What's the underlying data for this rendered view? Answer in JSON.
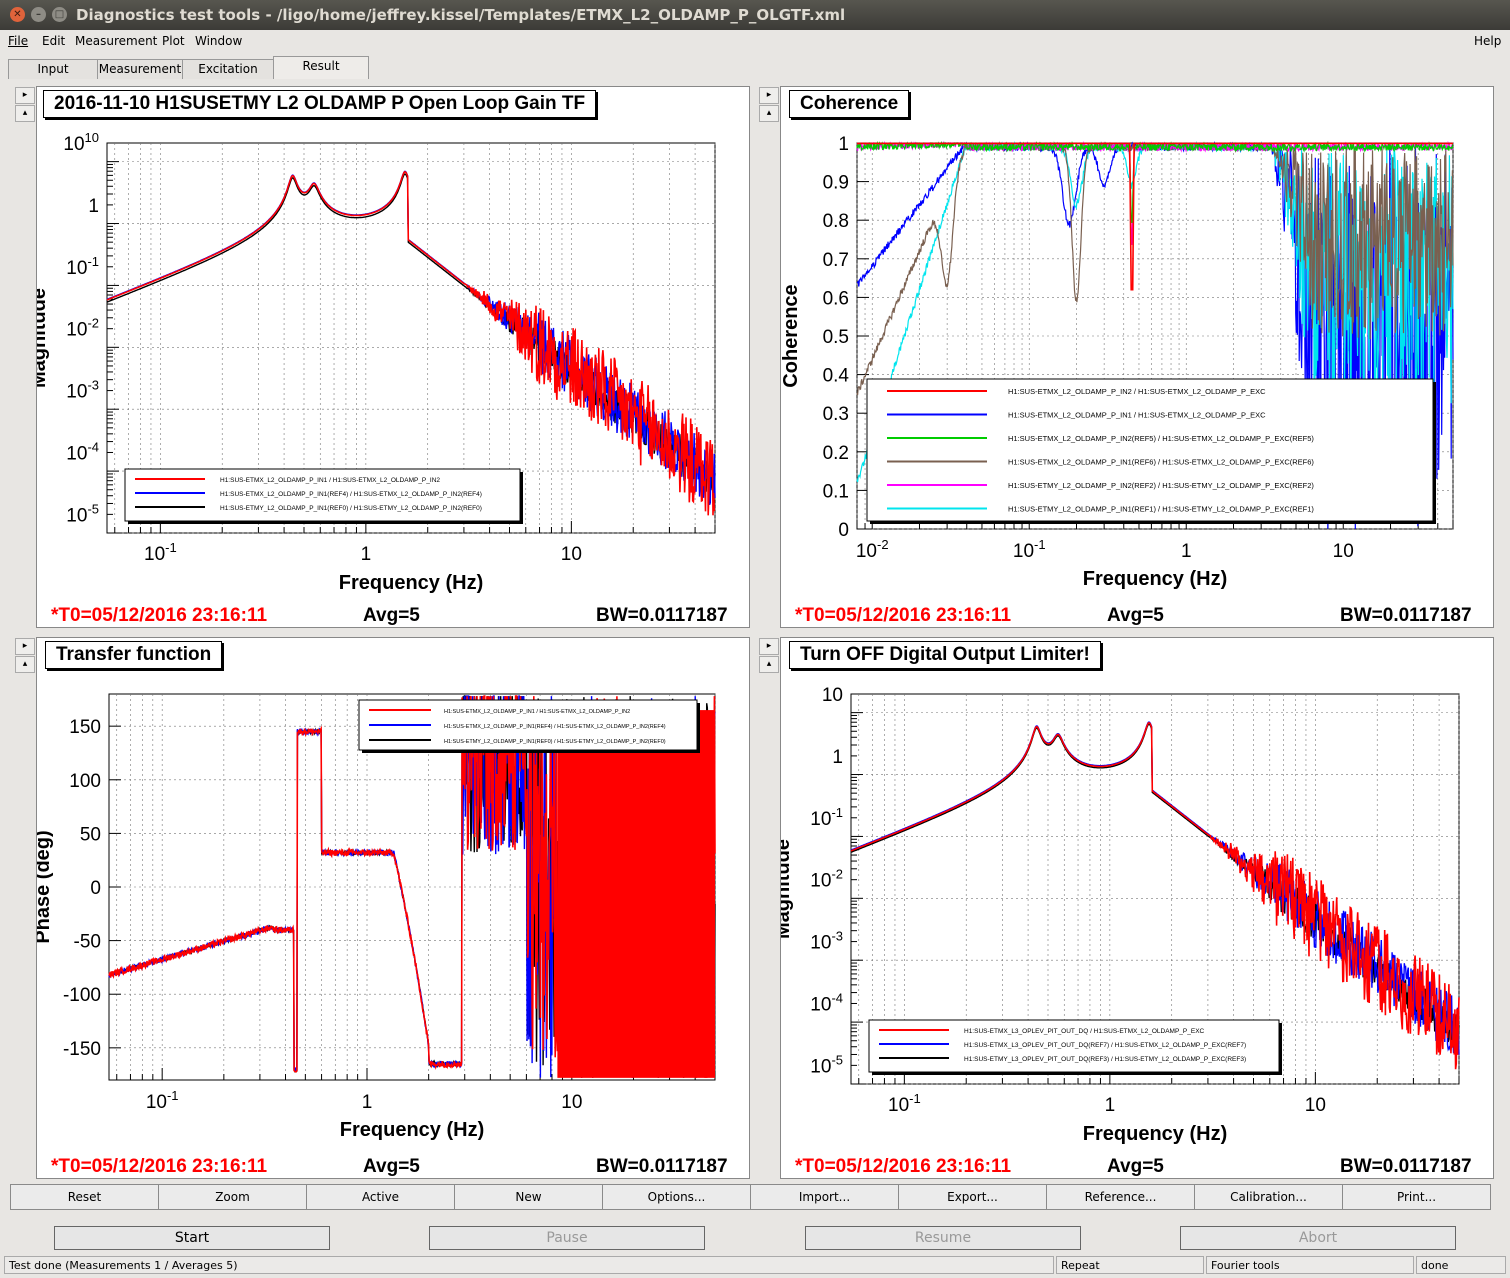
{
  "window": {
    "title": "Diagnostics test tools - /ligo/home/jeffrey.kissel/Templates/ETMX_L2_OLDAMP_P_OLGTF.xml"
  },
  "menu": {
    "file": "File",
    "edit": "Edit",
    "measurement": "Measurement",
    "plot": "Plot",
    "window": "Window",
    "help": "Help"
  },
  "tabs": [
    "Input",
    "Measurement",
    "Excitation",
    "Result"
  ],
  "panels": {
    "tl": {
      "title": "2016-11-10 H1SUSETMY L2 OLDAMP P Open Loop Gain TF",
      "ylabel": "Magnitude",
      "xlabel": "Frequency (Hz)",
      "yticks": [
        [
          "10",
          "10"
        ],
        [
          "1",
          ""
        ],
        [
          "10",
          "-1"
        ],
        [
          "10",
          "-2"
        ],
        [
          "10",
          "-3"
        ],
        [
          "10",
          "-4"
        ],
        [
          "10",
          "-5"
        ]
      ],
      "xticks": [
        [
          "10",
          "-1"
        ],
        [
          "1",
          ""
        ],
        [
          "10",
          ""
        ]
      ],
      "legend": [
        "H1:SUS-ETMX_L2_OLDAMP_P_IN1 / H1:SUS-ETMX_L2_OLDAMP_P_IN2",
        "H1:SUS-ETMX_L2_OLDAMP_P_IN1(REF4) / H1:SUS-ETMX_L2_OLDAMP_P_IN2(REF4)",
        "H1:SUS-ETMY_L2_OLDAMP_P_IN1(REF0) / H1:SUS-ETMY_L2_OLDAMP_P_IN2(REF0)"
      ],
      "t0": "*T0=05/12/2016 23:16:11",
      "avg": "Avg=5",
      "bw": "BW=0.0117187"
    },
    "tr": {
      "title": "Coherence",
      "ylabel": "Coherence",
      "xlabel": "Frequency (Hz)",
      "yticks": [
        "1",
        "0.9",
        "0.8",
        "0.7",
        "0.6",
        "0.5",
        "0.4",
        "0.3",
        "0.2",
        "0.1",
        "0"
      ],
      "xticks": [
        [
          "10",
          "-2"
        ],
        [
          "10",
          "-1"
        ],
        [
          "1",
          ""
        ],
        [
          "10",
          ""
        ]
      ],
      "legend": [
        "H1:SUS-ETMX_L2_OLDAMP_P_IN2 / H1:SUS-ETMX_L2_OLDAMP_P_EXC",
        "H1:SUS-ETMX_L2_OLDAMP_P_IN1 / H1:SUS-ETMX_L2_OLDAMP_P_EXC",
        "H1:SUS-ETMX_L2_OLDAMP_P_IN2(REF5) / H1:SUS-ETMX_L2_OLDAMP_P_EXC(REF5)",
        "H1:SUS-ETMX_L2_OLDAMP_P_IN1(REF6) / H1:SUS-ETMX_L2_OLDAMP_P_EXC(REF6)",
        "H1:SUS-ETMY_L2_OLDAMP_P_IN2(REF2) / H1:SUS-ETMY_L2_OLDAMP_P_EXC(REF2)",
        "H1:SUS-ETMY_L2_OLDAMP_P_IN1(REF1) / H1:SUS-ETMY_L2_OLDAMP_P_EXC(REF1)"
      ],
      "t0": "*T0=05/12/2016 23:16:11",
      "avg": "Avg=5",
      "bw": "BW=0.0117187"
    },
    "bl": {
      "title": "Transfer function",
      "ylabel": "Phase (deg)",
      "xlabel": "Frequency (Hz)",
      "yticks": [
        "150",
        "100",
        "50",
        "0",
        "-50",
        "-100",
        "-150"
      ],
      "xticks": [
        [
          "10",
          "-1"
        ],
        [
          "1",
          ""
        ],
        [
          "10",
          ""
        ]
      ],
      "legend": [
        "H1:SUS-ETMX_L2_OLDAMP_P_IN1 / H1:SUS-ETMX_L2_OLDAMP_P_IN2",
        "H1:SUS-ETMX_L2_OLDAMP_P_IN1(REF4) / H1:SUS-ETMX_L2_OLDAMP_P_IN2(REF4)",
        "H1:SUS-ETMY_L2_OLDAMP_P_IN1(REF0) / H1:SUS-ETMY_L2_OLDAMP_P_IN2(REF0)"
      ],
      "t0": "*T0=05/12/2016 23:16:11",
      "avg": "Avg=5",
      "bw": "BW=0.0117187"
    },
    "br": {
      "title": "Turn OFF Digital Output Limiter!",
      "ylabel": "Magnitude",
      "xlabel": "Frequency (Hz)",
      "yticks": [
        [
          "10",
          ""
        ],
        [
          "1",
          ""
        ],
        [
          "10",
          "-1"
        ],
        [
          "10",
          "-2"
        ],
        [
          "10",
          "-3"
        ],
        [
          "10",
          "-4"
        ],
        [
          "10",
          "-5"
        ]
      ],
      "xticks": [
        [
          "10",
          "-1"
        ],
        [
          "1",
          ""
        ],
        [
          "10",
          ""
        ]
      ],
      "legend": [
        "H1:SUS-ETMX_L3_OPLEV_PIT_OUT_DQ / H1:SUS-ETMX_L2_OLDAMP_P_EXC",
        "H1:SUS-ETMX_L3_OPLEV_PIT_OUT_DQ(REF7) / H1:SUS-ETMX_L2_OLDAMP_P_EXC(REF7)",
        "H1:SUS-ETMY_L3_OPLEV_PIT_OUT_DQ(REF3) / H1:SUS-ETMY_L2_OLDAMP_P_EXC(REF3)"
      ],
      "t0": "*T0=05/12/2016 23:16:11",
      "avg": "Avg=5",
      "bw": "BW=0.0117187"
    }
  },
  "buttons": [
    "Reset",
    "Zoom",
    "Active",
    "New",
    "Options...",
    "Import...",
    "Export...",
    "Reference...",
    "Calibration...",
    "Print..."
  ],
  "controls": {
    "start": "Start",
    "pause": "Pause",
    "resume": "Resume",
    "abort": "Abort"
  },
  "status": {
    "main": "Test done (Measurements 1 / Averages 5)",
    "mode": "Repeat",
    "tool": "Fourier tools",
    "state": "done"
  },
  "colors": {
    "red": "#ff0000",
    "blue": "#0000ff",
    "black": "#000000",
    "green": "#00cc00",
    "brown": "#7a6050",
    "magenta": "#ff00ff",
    "cyan": "#00e5ee"
  }
}
